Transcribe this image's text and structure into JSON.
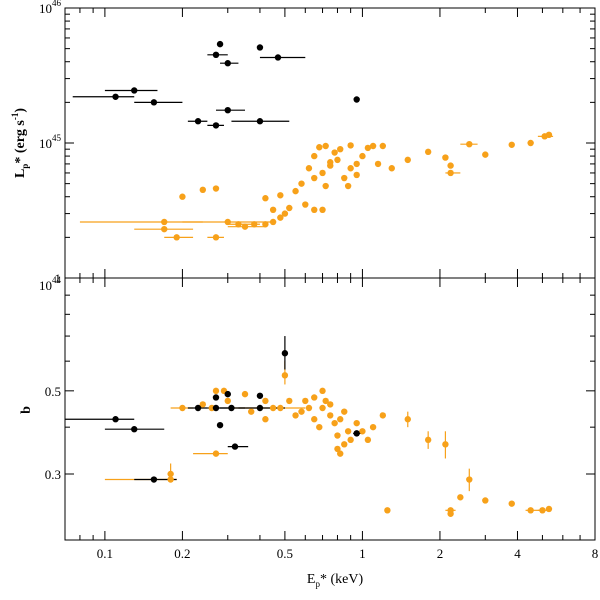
{
  "colors": {
    "orange": "#f7a11a",
    "black": "#000000"
  },
  "chart_data": [
    {
      "type": "scatter",
      "panel": "top",
      "xscale": "log",
      "yscale": "log",
      "xlim": [
        0.07,
        8
      ],
      "ylim": [
        1e+44,
        1e+46
      ],
      "ylabel": {
        "main": "L",
        "sub": "p",
        "rest": "*   (erg  s",
        "sup": "-1",
        "close": ")"
      },
      "yticks": [
        {
          "base": "10",
          "exp": "44",
          "v": 1e+44
        },
        {
          "base": "10",
          "exp": "45",
          "v": 1e+45
        },
        {
          "base": "10",
          "exp": "46",
          "v": 1e+46
        }
      ],
      "series": [
        {
          "name": "black",
          "color": "#000000",
          "points": [
            {
              "x": 0.11,
              "y": 2.2e+45,
              "xerr": [
                0.075,
                0.13
              ]
            },
            {
              "x": 0.13,
              "y": 2.45e+45,
              "xerr": [
                0.1,
                0.16
              ]
            },
            {
              "x": 0.155,
              "y": 2e+45,
              "xerr": [
                0.13,
                0.2
              ]
            },
            {
              "x": 0.23,
              "y": 1.45e+45,
              "xerr": [
                0.21,
                0.25
              ]
            },
            {
              "x": 0.27,
              "y": 1.35e+45,
              "xerr": [
                0.25,
                0.29
              ]
            },
            {
              "x": 0.3,
              "y": 1.75e+45,
              "xerr": [
                0.27,
                0.35
              ]
            },
            {
              "x": 0.4,
              "y": 1.45e+45,
              "xerr": [
                0.31,
                0.52
              ]
            },
            {
              "x": 0.27,
              "y": 4.5e+45,
              "xerr": [
                0.25,
                0.3
              ]
            },
            {
              "x": 0.28,
              "y": 5.4e+45
            },
            {
              "x": 0.3,
              "y": 3.9e+45,
              "xerr": [
                0.28,
                0.33
              ]
            },
            {
              "x": 0.4,
              "y": 5.1e+45
            },
            {
              "x": 0.47,
              "y": 4.3e+45,
              "xerr": [
                0.4,
                0.6
              ]
            },
            {
              "x": 0.95,
              "y": 2.1e+45
            }
          ]
        },
        {
          "name": "orange",
          "color": "#f7a11a",
          "points": [
            {
              "x": 0.2,
              "y": 4e+44
            },
            {
              "x": 0.24,
              "y": 4.5e+44
            },
            {
              "x": 0.27,
              "y": 4.6e+44
            },
            {
              "x": 0.17,
              "y": 2.6e+44,
              "xerr": [
                0.08,
                0.24
              ]
            },
            {
              "x": 0.17,
              "y": 2.3e+44,
              "xerr": [
                0.13,
                0.22
              ]
            },
            {
              "x": 0.19,
              "y": 2e+44,
              "xerr": [
                0.17,
                0.22
              ]
            },
            {
              "x": 0.27,
              "y": 2e+44,
              "xerr": [
                0.25,
                0.29
              ]
            },
            {
              "x": 0.3,
              "y": 2.6e+44,
              "xerr": [
                0.2,
                0.45
              ]
            },
            {
              "x": 0.33,
              "y": 2.5e+44,
              "xerr": [
                0.3,
                0.4
              ]
            },
            {
              "x": 0.35,
              "y": 2.4e+44,
              "xerr": [
                0.3,
                0.42
              ]
            },
            {
              "x": 0.38,
              "y": 2.5e+44
            },
            {
              "x": 0.42,
              "y": 2.5e+44
            },
            {
              "x": 0.45,
              "y": 2.6e+44
            },
            {
              "x": 0.48,
              "y": 2.8e+44
            },
            {
              "x": 0.5,
              "y": 3e+44
            },
            {
              "x": 0.52,
              "y": 3.3e+44
            },
            {
              "x": 0.45,
              "y": 3.2e+44
            },
            {
              "x": 0.42,
              "y": 3.9e+44
            },
            {
              "x": 0.48,
              "y": 4.1e+44
            },
            {
              "x": 0.55,
              "y": 4.4e+44
            },
            {
              "x": 0.6,
              "y": 3.5e+44
            },
            {
              "x": 0.65,
              "y": 3.2e+44
            },
            {
              "x": 0.7,
              "y": 3.2e+44
            },
            {
              "x": 0.58,
              "y": 5e+44
            },
            {
              "x": 0.65,
              "y": 5.5e+44
            },
            {
              "x": 0.7,
              "y": 6e+44
            },
            {
              "x": 0.72,
              "y": 4.8e+44
            },
            {
              "x": 0.75,
              "y": 6.8e+44
            },
            {
              "x": 0.8,
              "y": 7.5e+44
            },
            {
              "x": 0.85,
              "y": 5.5e+44
            },
            {
              "x": 0.9,
              "y": 6.5e+44
            },
            {
              "x": 0.78,
              "y": 8.5e+44
            },
            {
              "x": 0.82,
              "y": 9e+44
            },
            {
              "x": 0.65,
              "y": 8e+44
            },
            {
              "x": 0.68,
              "y": 9.3e+44
            },
            {
              "x": 0.72,
              "y": 9.5e+44
            },
            {
              "x": 0.95,
              "y": 7e+44
            },
            {
              "x": 1.0,
              "y": 8e+44
            },
            {
              "x": 1.05,
              "y": 9.2e+44
            },
            {
              "x": 1.1,
              "y": 9.5e+44
            },
            {
              "x": 0.9,
              "y": 9.6e+44
            },
            {
              "x": 0.75,
              "y": 7.2e+44
            },
            {
              "x": 0.62,
              "y": 6.5e+44
            },
            {
              "x": 0.88,
              "y": 4.8e+44
            },
            {
              "x": 0.95,
              "y": 5.8e+44
            },
            {
              "x": 1.2,
              "y": 9.5e+44
            },
            {
              "x": 1.15,
              "y": 7e+44
            },
            {
              "x": 1.3,
              "y": 6.5e+44
            },
            {
              "x": 1.5,
              "y": 7.5e+44
            },
            {
              "x": 1.8,
              "y": 8.6e+44
            },
            {
              "x": 2.1,
              "y": 7.8e+44
            },
            {
              "x": 2.2,
              "y": 6.8e+44
            },
            {
              "x": 2.2,
              "y": 6e+44,
              "xerr": [
                2.1,
                2.4
              ]
            },
            {
              "x": 2.6,
              "y": 9.8e+44,
              "xerr": [
                2.4,
                2.8
              ]
            },
            {
              "x": 3.0,
              "y": 8.2e+44
            },
            {
              "x": 3.8,
              "y": 9.7e+44
            },
            {
              "x": 4.5,
              "y": 1e+45
            },
            {
              "x": 5.1,
              "y": 1.12e+45,
              "xerr": [
                4.8,
                5.5
              ]
            },
            {
              "x": 5.3,
              "y": 1.15e+45
            }
          ]
        }
      ]
    },
    {
      "type": "scatter",
      "panel": "bottom",
      "xscale": "log",
      "yscale": "log",
      "xlim": [
        0.07,
        8
      ],
      "ylim": [
        0.2,
        1.0
      ],
      "ylabel": "b",
      "yticks": [
        {
          "label": "0.3",
          "v": 0.3
        },
        {
          "label": "0.5",
          "v": 0.5
        },
        {
          "label": "1",
          "v": 1.0
        }
      ],
      "xticks": [
        {
          "label": "0.1",
          "v": 0.1
        },
        {
          "label": "0.2",
          "v": 0.2
        },
        {
          "label": "0.5",
          "v": 0.5
        },
        {
          "label": "1",
          "v": 1
        },
        {
          "label": "2",
          "v": 2
        },
        {
          "label": "4",
          "v": 4
        },
        {
          "label": "8",
          "v": 8
        }
      ],
      "xlabel": {
        "main": "E",
        "sub": "p",
        "rest": "*   (keV)"
      },
      "series": [
        {
          "name": "black",
          "color": "#000000",
          "points": [
            {
              "x": 0.11,
              "y": 0.42,
              "xerr": [
                0.07,
                0.13
              ]
            },
            {
              "x": 0.13,
              "y": 0.395,
              "xerr": [
                0.1,
                0.17
              ]
            },
            {
              "x": 0.155,
              "y": 0.29,
              "xerr": [
                0.13,
                0.19
              ]
            },
            {
              "x": 0.23,
              "y": 0.45,
              "xerr": [
                0.21,
                0.25
              ]
            },
            {
              "x": 0.27,
              "y": 0.45,
              "xerr": [
                0.25,
                0.3
              ]
            },
            {
              "x": 0.27,
              "y": 0.48
            },
            {
              "x": 0.28,
              "y": 0.405
            },
            {
              "x": 0.3,
              "y": 0.49
            },
            {
              "x": 0.31,
              "y": 0.45,
              "xerr": [
                0.28,
                0.35
              ]
            },
            {
              "x": 0.32,
              "y": 0.355,
              "xerr": [
                0.3,
                0.36
              ]
            },
            {
              "x": 0.4,
              "y": 0.485
            },
            {
              "x": 0.4,
              "y": 0.45,
              "xerr": [
                0.33,
                0.5
              ]
            },
            {
              "x": 0.5,
              "y": 0.63,
              "yerr": [
                0.57,
                0.7
              ]
            },
            {
              "x": 0.95,
              "y": 0.385,
              "xerr": [
                0.92,
                1.0
              ]
            }
          ]
        },
        {
          "name": "orange",
          "color": "#f7a11a",
          "points": [
            {
              "x": 0.18,
              "y": 0.29,
              "xerr": [
                0.1,
                0.19
              ]
            },
            {
              "x": 0.18,
              "y": 0.3,
              "yerr": [
                0.29,
                0.32
              ]
            },
            {
              "x": 0.2,
              "y": 0.45,
              "xerr": [
                0.18,
                0.22
              ]
            },
            {
              "x": 0.24,
              "y": 0.46
            },
            {
              "x": 0.26,
              "y": 0.45
            },
            {
              "x": 0.27,
              "y": 0.5
            },
            {
              "x": 0.29,
              "y": 0.5
            },
            {
              "x": 0.3,
              "y": 0.47
            },
            {
              "x": 0.27,
              "y": 0.34,
              "xerr": [
                0.22,
                0.3
              ]
            },
            {
              "x": 0.35,
              "y": 0.49
            },
            {
              "x": 0.37,
              "y": 0.44
            },
            {
              "x": 0.42,
              "y": 0.47
            },
            {
              "x": 0.45,
              "y": 0.45,
              "xerr": [
                0.3,
                0.6
              ]
            },
            {
              "x": 0.5,
              "y": 0.55,
              "yerr": [
                0.52,
                0.6
              ]
            },
            {
              "x": 0.42,
              "y": 0.42
            },
            {
              "x": 0.48,
              "y": 0.45
            },
            {
              "x": 0.52,
              "y": 0.47
            },
            {
              "x": 0.55,
              "y": 0.43
            },
            {
              "x": 0.58,
              "y": 0.44
            },
            {
              "x": 0.62,
              "y": 0.45
            },
            {
              "x": 0.65,
              "y": 0.42
            },
            {
              "x": 0.68,
              "y": 0.4
            },
            {
              "x": 0.7,
              "y": 0.45
            },
            {
              "x": 0.72,
              "y": 0.47
            },
            {
              "x": 0.75,
              "y": 0.43
            },
            {
              "x": 0.78,
              "y": 0.41
            },
            {
              "x": 0.8,
              "y": 0.38
            },
            {
              "x": 0.82,
              "y": 0.42
            },
            {
              "x": 0.85,
              "y": 0.44
            },
            {
              "x": 0.88,
              "y": 0.39
            },
            {
              "x": 0.9,
              "y": 0.37
            },
            {
              "x": 0.95,
              "y": 0.41
            },
            {
              "x": 0.6,
              "y": 0.47
            },
            {
              "x": 0.65,
              "y": 0.48
            },
            {
              "x": 0.7,
              "y": 0.5
            },
            {
              "x": 0.75,
              "y": 0.46
            },
            {
              "x": 0.8,
              "y": 0.35
            },
            {
              "x": 0.82,
              "y": 0.34
            },
            {
              "x": 0.85,
              "y": 0.36
            },
            {
              "x": 1.0,
              "y": 0.39
            },
            {
              "x": 1.05,
              "y": 0.37
            },
            {
              "x": 1.1,
              "y": 0.4
            },
            {
              "x": 1.2,
              "y": 0.43
            },
            {
              "x": 1.25,
              "y": 0.24
            },
            {
              "x": 1.5,
              "y": 0.42,
              "yerr": [
                0.4,
                0.44
              ]
            },
            {
              "x": 1.8,
              "y": 0.37,
              "yerr": [
                0.35,
                0.39
              ]
            },
            {
              "x": 2.1,
              "y": 0.36,
              "yerr": [
                0.33,
                0.39
              ]
            },
            {
              "x": 2.2,
              "y": 0.24,
              "xerr": [
                2.1,
                2.3
              ]
            },
            {
              "x": 2.2,
              "y": 0.235
            },
            {
              "x": 2.4,
              "y": 0.26
            },
            {
              "x": 2.6,
              "y": 0.29,
              "yerr": [
                0.27,
                0.31
              ]
            },
            {
              "x": 3.0,
              "y": 0.255
            },
            {
              "x": 3.8,
              "y": 0.25
            },
            {
              "x": 4.5,
              "y": 0.24,
              "xerr": [
                4.3,
                4.9
              ]
            },
            {
              "x": 5.0,
              "y": 0.24,
              "xerr": [
                4.8,
                5.4
              ]
            },
            {
              "x": 5.3,
              "y": 0.242
            }
          ]
        }
      ]
    }
  ]
}
